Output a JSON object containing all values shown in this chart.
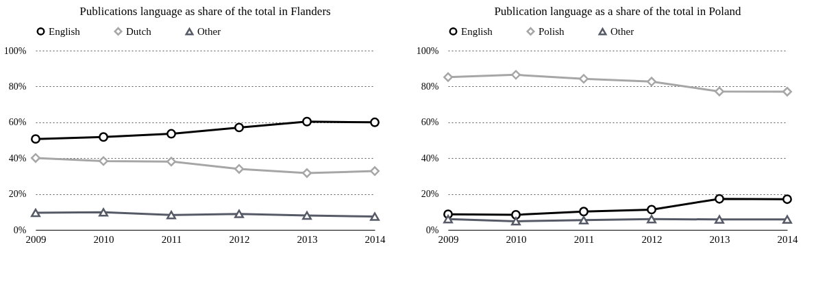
{
  "chart_data": [
    {
      "type": "line",
      "title": "Publications language as share of the total in Flanders",
      "categories": [
        "2009",
        "2010",
        "2011",
        "2012",
        "2013",
        "2014"
      ],
      "series": [
        {
          "name": "English",
          "color": "#000000",
          "marker": "circle",
          "values": [
            50.7,
            51.8,
            53.6,
            57.1,
            60.4,
            60.0
          ]
        },
        {
          "name": "Dutch",
          "color": "#a6a6a6",
          "marker": "diamond",
          "values": [
            40.1,
            38.4,
            38.1,
            34.0,
            31.7,
            32.8
          ]
        },
        {
          "name": "Other",
          "color": "#555a66",
          "marker": "triangle",
          "values": [
            9.5,
            9.8,
            8.3,
            8.9,
            8.0,
            7.4
          ]
        }
      ],
      "ylim": [
        0,
        100
      ],
      "yticks": [
        {
          "value": 0,
          "label": "0%"
        },
        {
          "value": 20,
          "label": "20%"
        },
        {
          "value": 40,
          "label": "40%"
        },
        {
          "value": 60,
          "label": "60%"
        },
        {
          "value": 80,
          "label": "80%"
        },
        {
          "value": 100,
          "label": "100%"
        }
      ],
      "grid": "y",
      "legend": "top",
      "line_style": "solid"
    },
    {
      "type": "line",
      "title": "Publication language as a share of the total in Poland",
      "categories": [
        "2009",
        "2010",
        "2011",
        "2012",
        "2013",
        "2014"
      ],
      "series": [
        {
          "name": "English",
          "color": "#000000",
          "marker": "circle",
          "values": [
            8.7,
            8.4,
            10.2,
            11.3,
            17.3,
            17.1
          ]
        },
        {
          "name": "Polish",
          "color": "#a6a6a6",
          "marker": "diamond",
          "values": [
            85.2,
            86.5,
            84.3,
            82.7,
            77.2,
            77.1
          ]
        },
        {
          "name": "Other",
          "color": "#555a66",
          "marker": "triangle",
          "values": [
            6.0,
            4.8,
            5.4,
            6.0,
            5.8,
            5.8
          ]
        }
      ],
      "ylim": [
        0,
        100
      ],
      "yticks": [
        {
          "value": 0,
          "label": "0%"
        },
        {
          "value": 20,
          "label": "20%"
        },
        {
          "value": 40,
          "label": "40%"
        },
        {
          "value": 60,
          "label": "60%"
        },
        {
          "value": 80,
          "label": "80%"
        },
        {
          "value": 100,
          "label": "100%"
        }
      ],
      "grid": "y",
      "legend": "top",
      "line_style": "solid"
    }
  ]
}
